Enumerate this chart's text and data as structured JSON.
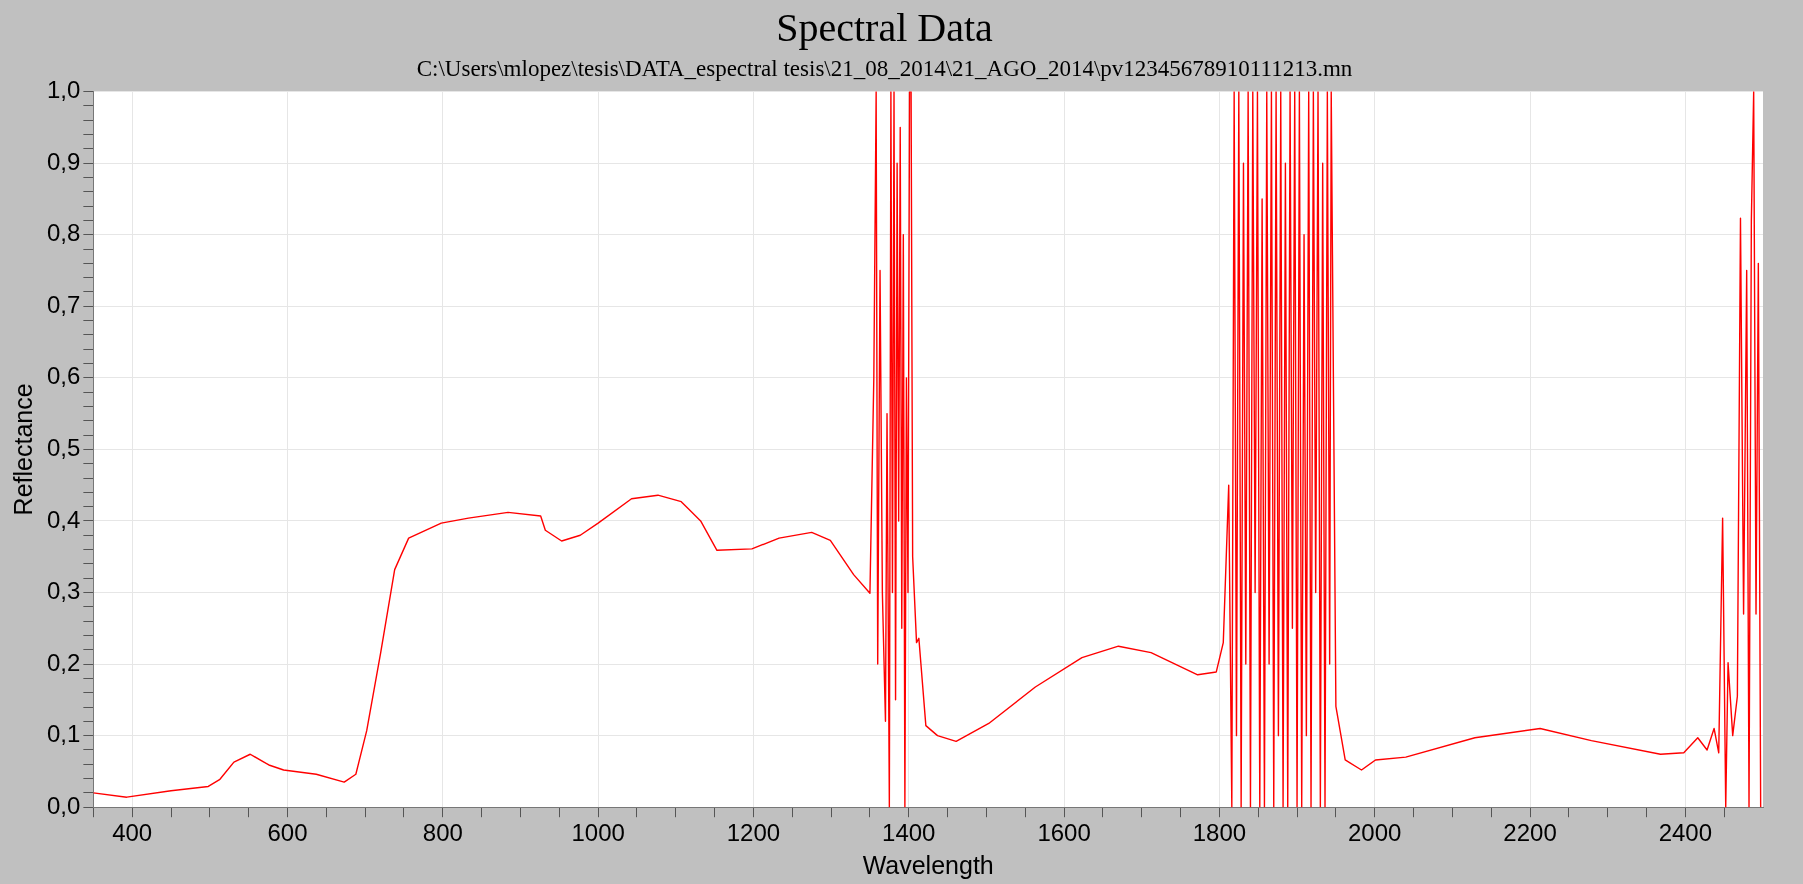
{
  "chart_data": {
    "type": "line",
    "title": "Spectral Data",
    "subtitle": "C:\\Users\\mlopez\\tesis\\DATA_espectral tesis\\21_08_2014\\21_AGO_2014\\pv12345678910111213.mn",
    "xlabel": "Wavelength",
    "ylabel": "Reflectance",
    "grid": true,
    "legend": false,
    "marker": "none",
    "line_style": "solid",
    "xlim": [
      350,
      2500
    ],
    "xticks": [
      {
        "value": 350,
        "label": null
      },
      400,
      {
        "value": 450,
        "label": null
      },
      {
        "value": 500,
        "label": null
      },
      {
        "value": 550,
        "label": null
      },
      600,
      {
        "value": 650,
        "label": null
      },
      {
        "value": 700,
        "label": null
      },
      {
        "value": 750,
        "label": null
      },
      800,
      {
        "value": 850,
        "label": null
      },
      {
        "value": 900,
        "label": null
      },
      {
        "value": 950,
        "label": null
      },
      1000,
      {
        "value": 1050,
        "label": null
      },
      {
        "value": 1100,
        "label": null
      },
      {
        "value": 1150,
        "label": null
      },
      1200,
      {
        "value": 1250,
        "label": null
      },
      {
        "value": 1300,
        "label": null
      },
      {
        "value": 1350,
        "label": null
      },
      1400,
      {
        "value": 1450,
        "label": null
      },
      {
        "value": 1500,
        "label": null
      },
      {
        "value": 1550,
        "label": null
      },
      1600,
      {
        "value": 1650,
        "label": null
      },
      {
        "value": 1700,
        "label": null
      },
      {
        "value": 1750,
        "label": null
      },
      1800,
      {
        "value": 1850,
        "label": null
      },
      {
        "value": 1900,
        "label": null
      },
      {
        "value": 1950,
        "label": null
      },
      2000,
      {
        "value": 2050,
        "label": null
      },
      {
        "value": 2100,
        "label": null
      },
      {
        "value": 2150,
        "label": null
      },
      2200,
      {
        "value": 2250,
        "label": null
      },
      {
        "value": 2300,
        "label": null
      },
      {
        "value": 2350,
        "label": null
      },
      2400,
      {
        "value": 2450,
        "label": null
      }
    ],
    "ylim": [
      0,
      1
    ],
    "yticks": [
      {
        "value": 0,
        "label": "0,0"
      },
      {
        "value": 0.02,
        "label": null
      },
      {
        "value": 0.04,
        "label": null
      },
      {
        "value": 0.06,
        "label": null
      },
      {
        "value": 0.08,
        "label": null
      },
      {
        "value": 0.1,
        "label": "0,1"
      },
      {
        "value": 0.12,
        "label": null
      },
      {
        "value": 0.14,
        "label": null
      },
      {
        "value": 0.16,
        "label": null
      },
      {
        "value": 0.18,
        "label": null
      },
      {
        "value": 0.2,
        "label": "0,2"
      },
      {
        "value": 0.22,
        "label": null
      },
      {
        "value": 0.24,
        "label": null
      },
      {
        "value": 0.26,
        "label": null
      },
      {
        "value": 0.28,
        "label": null
      },
      {
        "value": 0.3,
        "label": "0,3"
      },
      {
        "value": 0.32,
        "label": null
      },
      {
        "value": 0.34,
        "label": null
      },
      {
        "value": 0.36,
        "label": null
      },
      {
        "value": 0.38,
        "label": null
      },
      {
        "value": 0.4,
        "label": "0,4"
      },
      {
        "value": 0.42,
        "label": null
      },
      {
        "value": 0.44,
        "label": null
      },
      {
        "value": 0.46,
        "label": null
      },
      {
        "value": 0.48,
        "label": null
      },
      {
        "value": 0.5,
        "label": "0,5"
      },
      {
        "value": 0.52,
        "label": null
      },
      {
        "value": 0.54,
        "label": null
      },
      {
        "value": 0.56,
        "label": null
      },
      {
        "value": 0.58,
        "label": null
      },
      {
        "value": 0.6,
        "label": "0,6"
      },
      {
        "value": 0.62,
        "label": null
      },
      {
        "value": 0.64,
        "label": null
      },
      {
        "value": 0.66,
        "label": null
      },
      {
        "value": 0.68,
        "label": null
      },
      {
        "value": 0.7,
        "label": "0,7"
      },
      {
        "value": 0.72,
        "label": null
      },
      {
        "value": 0.74,
        "label": null
      },
      {
        "value": 0.76,
        "label": null
      },
      {
        "value": 0.78,
        "label": null
      },
      {
        "value": 0.8,
        "label": "0,8"
      },
      {
        "value": 0.82,
        "label": null
      },
      {
        "value": 0.84,
        "label": null
      },
      {
        "value": 0.86,
        "label": null
      },
      {
        "value": 0.88,
        "label": null
      },
      {
        "value": 0.9,
        "label": "0,9"
      },
      {
        "value": 0.92,
        "label": null
      },
      {
        "value": 0.94,
        "label": null
      },
      {
        "value": 0.96,
        "label": null
      },
      {
        "value": 0.98,
        "label": null
      },
      {
        "value": 1,
        "label": "1,0"
      }
    ],
    "series": [
      {
        "color": "#ff0000",
        "x": [
          350,
          393,
          450,
          498,
          513,
          531,
          552,
          576,
          595,
          637,
          673,
          688,
          702,
          720,
          738,
          756,
          798,
          833,
          884,
          926,
          932,
          953,
          977,
          1000,
          1043,
          1077,
          1107,
          1132,
          1153,
          1198,
          1233,
          1275,
          1299,
          1329,
          1350,
          1355,
          1358,
          1360,
          1363,
          1366,
          1370,
          1372,
          1375,
          1377,
          1379,
          1381,
          1383,
          1385,
          1387,
          1389,
          1391,
          1393,
          1395,
          1397,
          1399,
          1401,
          1403,
          1405,
          1410,
          1413,
          1422,
          1437,
          1461,
          1503,
          1563,
          1623,
          1670,
          1712,
          1772,
          1796,
          1805,
          1812,
          1816,
          1819,
          1822,
          1825,
          1828,
          1831,
          1834,
          1837,
          1840,
          1843,
          1846,
          1849,
          1852,
          1855,
          1858,
          1861,
          1864,
          1867,
          1870,
          1873,
          1876,
          1879,
          1882,
          1885,
          1888,
          1891,
          1894,
          1897,
          1900,
          1903,
          1906,
          1909,
          1912,
          1915,
          1918,
          1921,
          1924,
          1927,
          1930,
          1933,
          1936,
          1939,
          1942,
          1944,
          1950,
          1962,
          1983,
          2001,
          2040,
          2129,
          2213,
          2279,
          2368,
          2398,
          2416,
          2428,
          2437,
          2443,
          2448,
          2452,
          2455,
          2461,
          2467,
          2471,
          2475,
          2479,
          2482,
          2485,
          2488,
          2491,
          2494,
          2497
        ],
        "values": [
          0.02,
          0.014,
          0.023,
          0.029,
          0.039,
          0.063,
          0.074,
          0.059,
          0.052,
          0.046,
          0.035,
          0.046,
          0.107,
          0.216,
          0.332,
          0.376,
          0.397,
          0.404,
          0.412,
          0.407,
          0.387,
          0.372,
          0.38,
          0.397,
          0.431,
          0.436,
          0.427,
          0.4,
          0.359,
          0.361,
          0.376,
          0.384,
          0.373,
          0.325,
          0.299,
          0.6,
          1,
          0.2,
          0.75,
          0.3,
          0.12,
          0.55,
          0,
          1,
          0.3,
          1,
          0.15,
          0.9,
          0.4,
          0.95,
          0.25,
          0.8,
          0,
          0.6,
          0.3,
          1,
          1,
          0.35,
          0.23,
          0.236,
          0.114,
          0.1,
          0.092,
          0.117,
          0.168,
          0.209,
          0.225,
          0.216,
          0.185,
          0.189,
          0.23,
          0.45,
          0,
          1,
          0.1,
          1,
          0,
          0.9,
          0.2,
          1,
          0,
          1,
          0.3,
          1,
          0,
          0.85,
          0,
          1,
          0.2,
          1,
          0,
          1,
          0.1,
          1,
          0,
          0.9,
          0,
          1,
          0.25,
          1,
          0,
          1,
          0,
          0.8,
          0.1,
          1,
          0,
          1,
          0.3,
          1,
          0,
          0.9,
          0,
          1,
          0.2,
          1,
          0.141,
          0.066,
          0.052,
          0.066,
          0.07,
          0.097,
          0.11,
          0.093,
          0.074,
          0.076,
          0.097,
          0.08,
          0.11,
          0.076,
          0.404,
          0,
          0.202,
          0.1,
          0.155,
          0.823,
          0.27,
          0.75,
          0,
          0.82,
          1,
          0.27,
          0.76,
          0
        ]
      }
    ]
  }
}
